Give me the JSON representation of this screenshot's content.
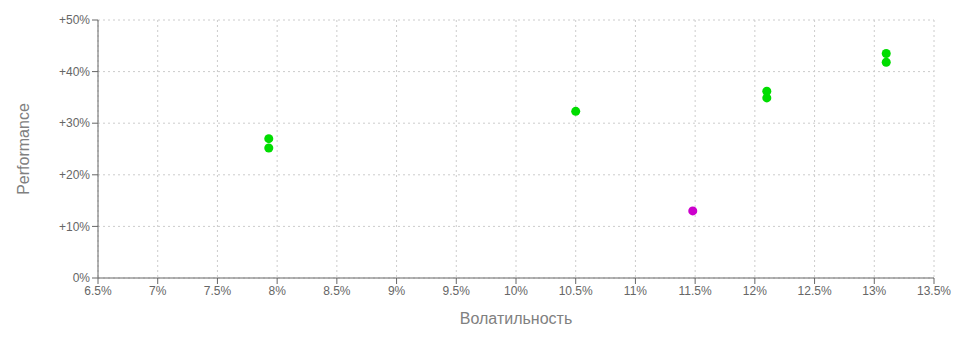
{
  "chart_data": {
    "type": "scatter",
    "xlabel": "Волатильность",
    "ylabel": "Performance",
    "xlim": [
      0.065,
      0.135
    ],
    "ylim": [
      0.0,
      0.5
    ],
    "xticks": [
      {
        "value": 0.065,
        "label": "6.5%"
      },
      {
        "value": 0.07,
        "label": "7%"
      },
      {
        "value": 0.075,
        "label": "7.5%"
      },
      {
        "value": 0.08,
        "label": "8%"
      },
      {
        "value": 0.085,
        "label": "8.5%"
      },
      {
        "value": 0.09,
        "label": "9%"
      },
      {
        "value": 0.095,
        "label": "9.5%"
      },
      {
        "value": 0.1,
        "label": "10%"
      },
      {
        "value": 0.105,
        "label": "10.5%"
      },
      {
        "value": 0.11,
        "label": "11%"
      },
      {
        "value": 0.115,
        "label": "11.5%"
      },
      {
        "value": 0.12,
        "label": "12%"
      },
      {
        "value": 0.125,
        "label": "12.5%"
      },
      {
        "value": 0.13,
        "label": "13%"
      },
      {
        "value": 0.135,
        "label": "13.5%"
      }
    ],
    "yticks": [
      {
        "value": 0.0,
        "label": "0%"
      },
      {
        "value": 0.1,
        "label": "+10%"
      },
      {
        "value": 0.2,
        "label": "+20%"
      },
      {
        "value": 0.3,
        "label": "+30%"
      },
      {
        "value": 0.4,
        "label": "+40%"
      },
      {
        "value": 0.5,
        "label": "+50%"
      }
    ],
    "grid": true,
    "series": [
      {
        "color": "#00dd00",
        "x": [
          0.0793,
          0.0793,
          0.105,
          0.121,
          0.121,
          0.131,
          0.131
        ],
        "y": [
          0.27,
          0.252,
          0.323,
          0.362,
          0.349,
          0.435,
          0.418
        ]
      },
      {
        "color": "#cc00cc",
        "x": [
          0.1148
        ],
        "y": [
          0.13
        ]
      }
    ]
  }
}
